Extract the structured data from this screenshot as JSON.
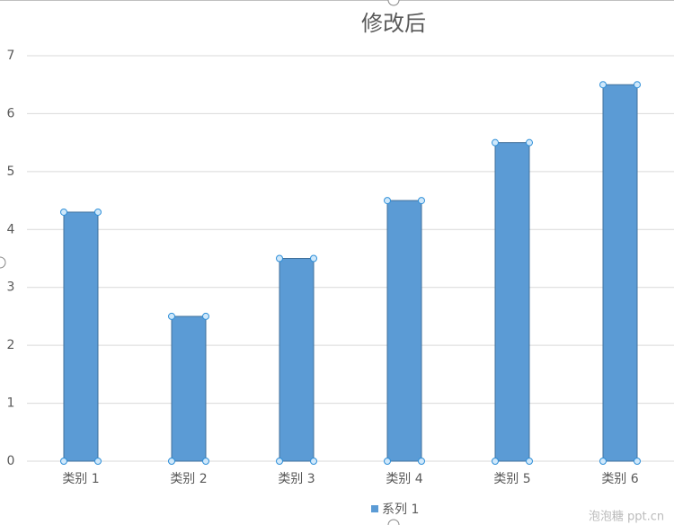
{
  "chart_data": {
    "type": "bar",
    "title": "修改后",
    "categories": [
      "类别 1",
      "类别 2",
      "类别 3",
      "类别 4",
      "类别 5",
      "类别 6"
    ],
    "series": [
      {
        "name": "系列 1",
        "color": "#5b9bd5",
        "values": [
          4.3,
          2.5,
          3.5,
          4.5,
          5.5,
          6.5
        ]
      }
    ],
    "ylim": [
      0,
      7
    ],
    "yticks": [
      0,
      1,
      2,
      3,
      4,
      5,
      6,
      7
    ],
    "grid": true,
    "legend": "bottom"
  },
  "watermark": "泡泡糖 ppt.cn"
}
